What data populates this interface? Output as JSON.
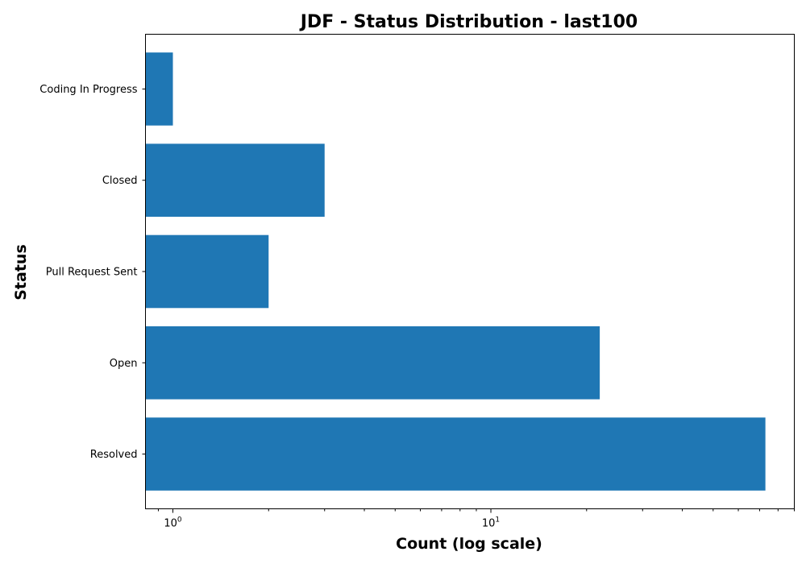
{
  "chart_data": {
    "type": "bar",
    "orientation": "horizontal",
    "title": "JDF - Status Distribution - last100",
    "xlabel": "Count (log scale)",
    "ylabel": "Status",
    "x_scale": "log",
    "xlim": [
      0.82,
      90
    ],
    "categories": [
      "Resolved",
      "Open",
      "Pull Request Sent",
      "Closed",
      "Coding In Progress"
    ],
    "values": [
      73,
      22,
      2,
      3,
      1
    ],
    "x_major_ticks": [
      {
        "value": 1,
        "base": "10",
        "exponent": "0"
      },
      {
        "value": 10,
        "base": "10",
        "exponent": "1"
      }
    ],
    "bar_color": "#1f77b4",
    "grid": false,
    "legend": "none"
  }
}
